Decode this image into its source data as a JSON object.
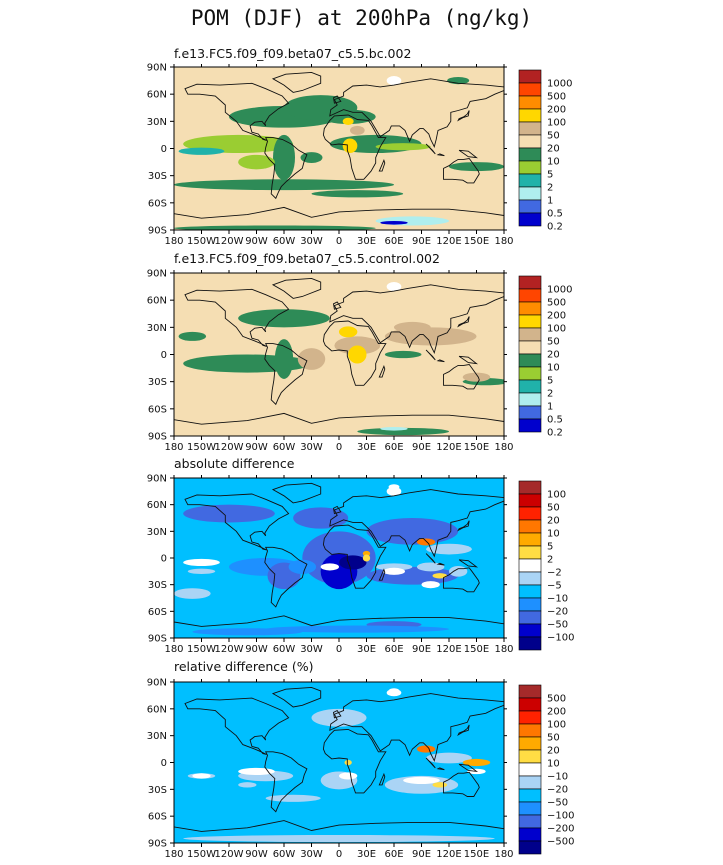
{
  "title": "POM (DJF) at 200hPa (ng/kg)",
  "chart_data": [
    {
      "type": "heatmap",
      "title": "f.e13.FC5.f09_f09.beta07_c5.5.bc.002",
      "x_ticks": [
        "180",
        "150W",
        "120W",
        "90W",
        "60W",
        "30W",
        "0",
        "30E",
        "60E",
        "90E",
        "120E",
        "150E",
        "180"
      ],
      "y_ticks": [
        "90N",
        "60N",
        "30N",
        "0",
        "30S",
        "60S",
        "90S"
      ],
      "xlim": [
        -180,
        180
      ],
      "ylim": [
        -90,
        90
      ],
      "levels": [
        "1000",
        "500",
        "200",
        "100",
        "50",
        "20",
        "10",
        "5",
        "2",
        "1",
        "0.5",
        "0.2"
      ],
      "colors": [
        "#b22222",
        "#ff4500",
        "#ff8c00",
        "#ffd700",
        "#d2b48c",
        "#f5deb3",
        "#2e8b57",
        "#9acd32",
        "#20b2aa",
        "#afeeee",
        "#4169e1",
        "#0000cd"
      ],
      "background_color": "#f5deb3"
    },
    {
      "type": "heatmap",
      "title": "f.e13.FC5.f09_f09.beta07_c5.5.control.002",
      "x_ticks": [
        "180",
        "150W",
        "120W",
        "90W",
        "60W",
        "30W",
        "0",
        "30E",
        "60E",
        "90E",
        "120E",
        "150E",
        "180"
      ],
      "y_ticks": [
        "90N",
        "60N",
        "30N",
        "0",
        "30S",
        "60S",
        "90S"
      ],
      "xlim": [
        -180,
        180
      ],
      "ylim": [
        -90,
        90
      ],
      "levels": [
        "1000",
        "500",
        "200",
        "100",
        "50",
        "20",
        "10",
        "5",
        "2",
        "1",
        "0.5",
        "0.2"
      ],
      "colors": [
        "#b22222",
        "#ff4500",
        "#ff8c00",
        "#ffd700",
        "#d2b48c",
        "#f5deb3",
        "#2e8b57",
        "#9acd32",
        "#20b2aa",
        "#afeeee",
        "#4169e1",
        "#0000cd"
      ],
      "background_color": "#f5deb3"
    },
    {
      "type": "heatmap",
      "title": "absolute difference",
      "x_ticks": [
        "180",
        "150W",
        "120W",
        "90W",
        "60W",
        "30W",
        "0",
        "30E",
        "60E",
        "90E",
        "120E",
        "150E",
        "180"
      ],
      "y_ticks": [
        "90N",
        "60N",
        "30N",
        "0",
        "30S",
        "60S",
        "90S"
      ],
      "xlim": [
        -180,
        180
      ],
      "ylim": [
        -90,
        90
      ],
      "levels": [
        "100",
        "50",
        "20",
        "10",
        "5",
        "2",
        "−2",
        "−5",
        "−10",
        "−20",
        "−50",
        "−100"
      ],
      "colors": [
        "#a52a2a",
        "#cc0000",
        "#ff2200",
        "#ff7700",
        "#ffaa00",
        "#ffdd44",
        "#ffffff",
        "#aad4f5",
        "#00bfff",
        "#1e90ff",
        "#4169e1",
        "#0000cd",
        "#00008b"
      ],
      "background_color": "#00bfff"
    },
    {
      "type": "heatmap",
      "title": "relative difference (%)",
      "x_ticks": [
        "180",
        "150W",
        "120W",
        "90W",
        "60W",
        "30W",
        "0",
        "30E",
        "60E",
        "90E",
        "120E",
        "150E",
        "180"
      ],
      "y_ticks": [
        "90N",
        "60N",
        "30N",
        "0",
        "30S",
        "60S",
        "90S"
      ],
      "xlim": [
        -180,
        180
      ],
      "ylim": [
        -90,
        90
      ],
      "levels": [
        "500",
        "200",
        "100",
        "50",
        "20",
        "10",
        "−10",
        "−20",
        "−50",
        "−100",
        "−200",
        "−500"
      ],
      "colors": [
        "#a52a2a",
        "#cc0000",
        "#ff2200",
        "#ff7700",
        "#ffaa00",
        "#ffdd44",
        "#ffffff",
        "#aad4f5",
        "#00bfff",
        "#1e90ff",
        "#4169e1",
        "#0000cd",
        "#00008b"
      ],
      "background_color": "#00bfff"
    }
  ]
}
